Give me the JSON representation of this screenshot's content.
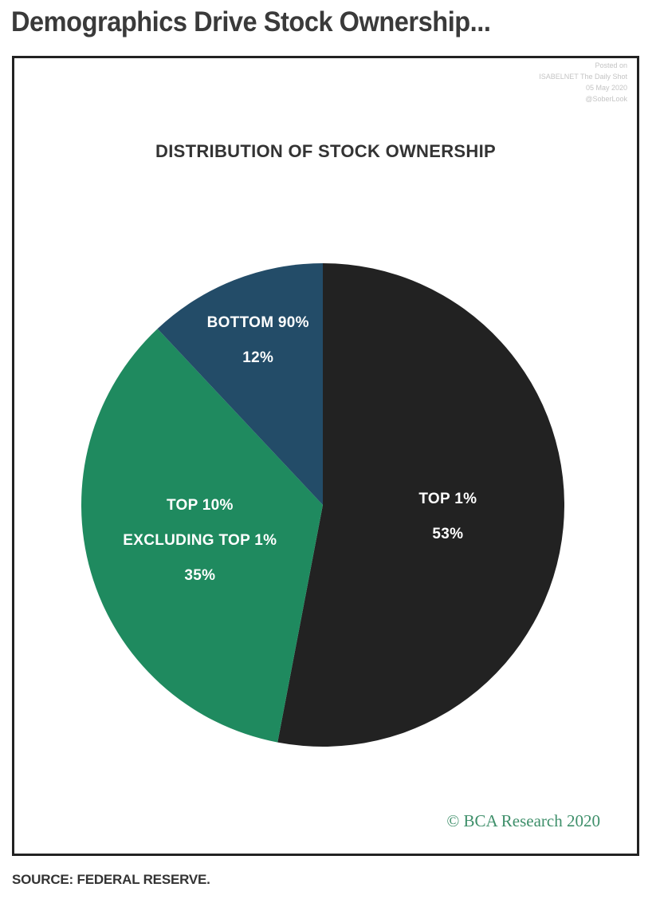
{
  "headline": "Demographics Drive Stock Ownership...",
  "watermark": {
    "line1": "Posted on",
    "line2": "ISABELNET The Daily Shot",
    "line3": "05 May 2020",
    "line4": "@SoberLook"
  },
  "chart_data": {
    "type": "pie",
    "title": "DISTRIBUTION OF STOCK OWNERSHIP",
    "slices": [
      {
        "label_lines": [
          "TOP 1%",
          "53%"
        ],
        "value": 53,
        "color": "#222222"
      },
      {
        "label_lines": [
          "TOP 10%",
          "EXCLUDING TOP 1%",
          "35%"
        ],
        "value": 35,
        "color": "#1f8a5f"
      },
      {
        "label_lines": [
          "BOTTOM 90%",
          "12%"
        ],
        "value": 12,
        "color": "#234c68"
      }
    ],
    "start_angle_deg": 0,
    "direction": "clockwise"
  },
  "copyright": "© BCA Research 2020",
  "source": "SOURCE: FEDERAL RESERVE."
}
